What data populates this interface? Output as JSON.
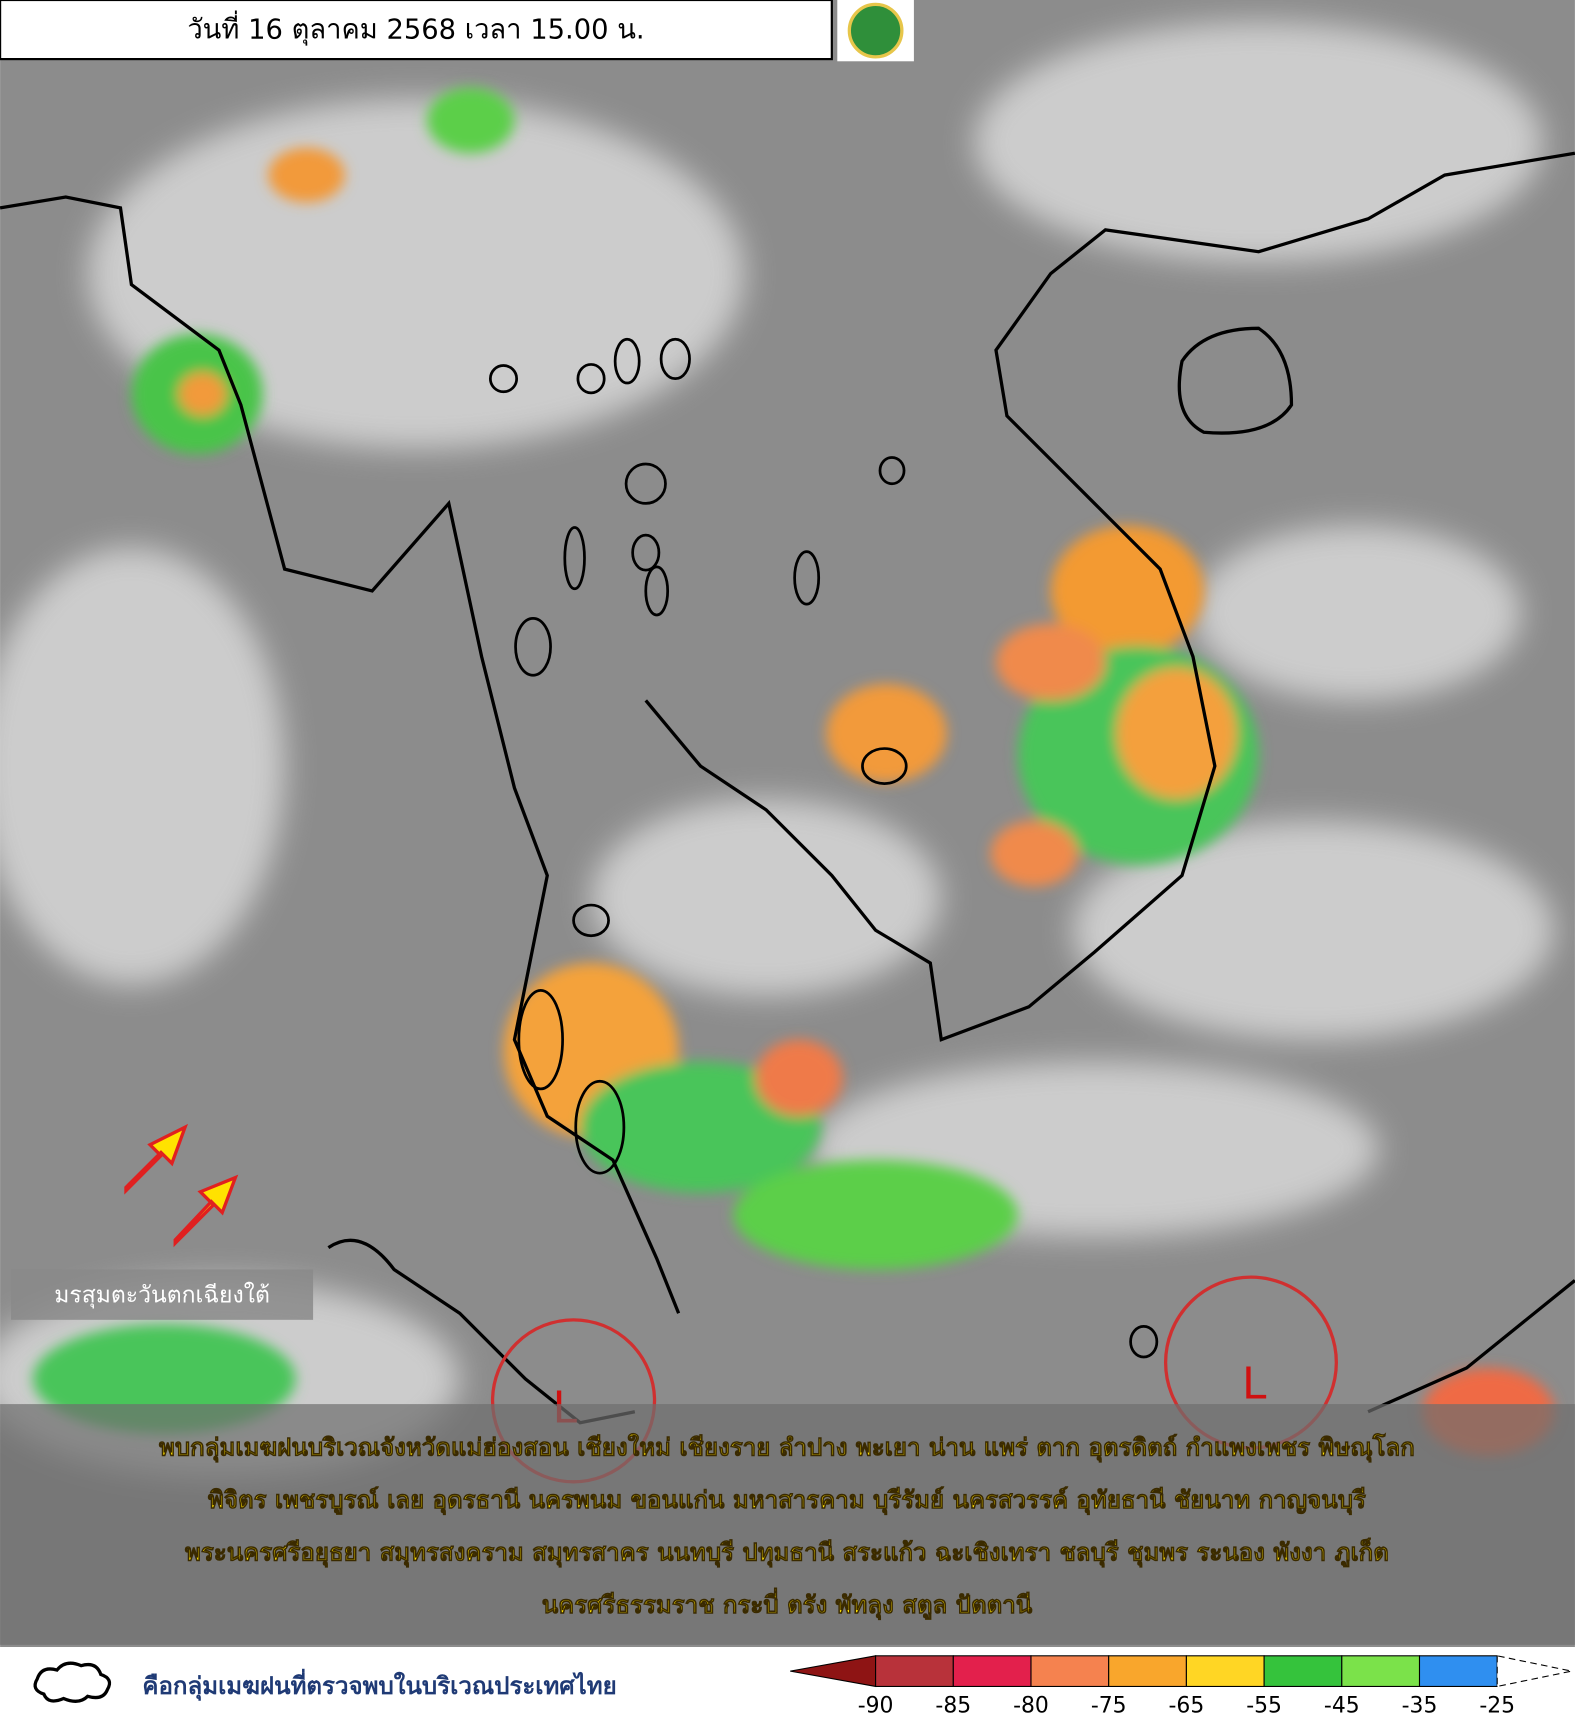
{
  "header": {
    "date": "วันที่ 16 ตุลาคม 2568 เวลา 15.00 น."
  },
  "map": {
    "monsoon_label": "มรสุมตะวันตกเฉียงใต้",
    "lows": [
      "L",
      "L"
    ],
    "summary": [
      "พบกลุ่มเมฆฝนบริเวณจังหวัดแม่ฮ่องสอน เชียงใหม่ เชียงราย ลำปาง พะเยา น่าน แพร่ ตาก อุตรดิตถ์ กำแพงเพชร พิษณุโลก",
      "พิจิตร เพชรบูรณ์ เลย อุดรธานี นครพนม ขอนแก่น มหาสารคาม บุรีรัมย์ นครสวรรค์ อุทัยธานี ชัยนาท กาญจนบุรี",
      "พระนครศรีอยุธยา สมุทรสงคราม สมุทรสาคร นนทบุรี ปทุมธานี สระแก้ว ฉะเชิงเทรา ชลบุรี ชุมพร ระนอง พังงา ภูเก็ต",
      "นครศรีธรรมราช กระบี่ ตรัง พัทลุง สตูล ปัตตานี"
    ]
  },
  "legend": {
    "cloud_note": "คือกลุ่มเมฆฝนที่ตรวจพบในบริเวณประเทศไทย",
    "scale_ticks": [
      -90,
      -85,
      -80,
      -75,
      -65,
      -55,
      -45,
      -35,
      -25
    ],
    "scale_colors": [
      "#8e1414",
      "#b8323a",
      "#e3204c",
      "#f5824f",
      "#f9a62c",
      "#ffd624",
      "#35c33c",
      "#7be24a",
      "#2f8ff0"
    ]
  }
}
